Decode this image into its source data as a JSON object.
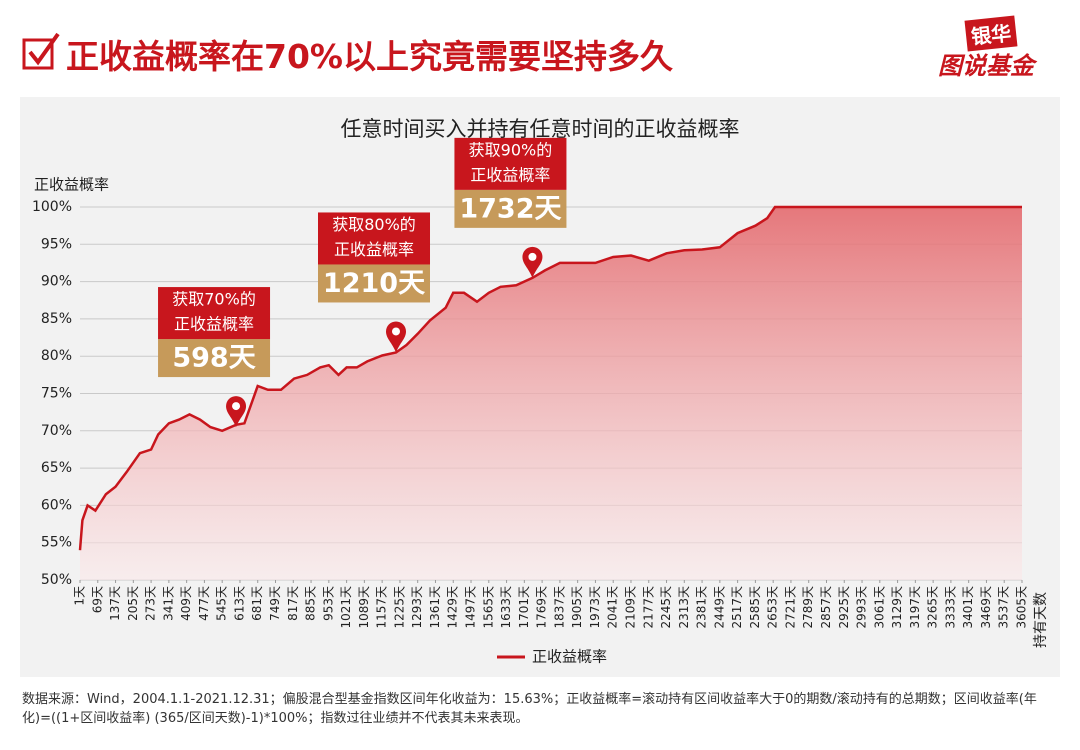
{
  "header": {
    "title": "正收益概率在70%以上究竟需要坚持多久",
    "logo_top": "银华",
    "logo_bottom": "图说基金"
  },
  "chart_data": {
    "type": "line",
    "title": "任意时间买入并持有任意时间的正收益概率",
    "y_label": "正收益概率",
    "x_label": "持有天数",
    "x": [
      1,
      10,
      30,
      60,
      100,
      137,
      180,
      230,
      273,
      300,
      341,
      380,
      420,
      460,
      500,
      545,
      598,
      630,
      681,
      720,
      770,
      820,
      870,
      920,
      953,
      990,
      1021,
      1060,
      1100,
      1157,
      1210,
      1250,
      1293,
      1340,
      1400,
      1429,
      1470,
      1520,
      1565,
      1610,
      1670,
      1732,
      1780,
      1837,
      1905,
      1973,
      2041,
      2109,
      2177,
      2245,
      2313,
      2381,
      2449,
      2517,
      2585,
      2630,
      2660,
      3605
    ],
    "series": [
      {
        "name": "正收益概率",
        "color": "#c8161d",
        "values": [
          54,
          58,
          60,
          59.3,
          61.5,
          62.5,
          64.5,
          67,
          67.5,
          69.5,
          71,
          71.5,
          72.2,
          71.5,
          70.5,
          70,
          70.8,
          71,
          76,
          75.5,
          75.5,
          77,
          77.5,
          78.5,
          78.8,
          77.5,
          78.5,
          78.5,
          79.3,
          80.1,
          80.5,
          81.5,
          83,
          84.8,
          86.5,
          88.5,
          88.5,
          87.3,
          88.5,
          89.3,
          89.5,
          90.5,
          91.5,
          92.5,
          92.5,
          92.5,
          93.3,
          93.5,
          92.8,
          93.8,
          94.2,
          94.3,
          94.6,
          96.5,
          97.5,
          98.5,
          100,
          100
        ]
      }
    ],
    "xlim": [
      1,
      3605
    ],
    "ylim": [
      50,
      100
    ],
    "yticks": [
      {
        "value": 50,
        "label": "50%"
      },
      {
        "value": 55,
        "label": "55%"
      },
      {
        "value": 60,
        "label": "60%"
      },
      {
        "value": 65,
        "label": "65%"
      },
      {
        "value": 70,
        "label": "70%"
      },
      {
        "value": 75,
        "label": "75%"
      },
      {
        "value": 80,
        "label": "80%"
      },
      {
        "value": 85,
        "label": "85%"
      },
      {
        "value": 90,
        "label": "90%"
      },
      {
        "value": 95,
        "label": "95%"
      },
      {
        "value": 100,
        "label": "100%"
      }
    ],
    "xticks": [
      {
        "value": 1,
        "label": "1天"
      },
      {
        "value": 69,
        "label": "69天"
      },
      {
        "value": 137,
        "label": "137天"
      },
      {
        "value": 205,
        "label": "205天"
      },
      {
        "value": 273,
        "label": "273天"
      },
      {
        "value": 341,
        "label": "341天"
      },
      {
        "value": 409,
        "label": "409天"
      },
      {
        "value": 477,
        "label": "477天"
      },
      {
        "value": 545,
        "label": "545天"
      },
      {
        "value": 613,
        "label": "613天"
      },
      {
        "value": 681,
        "label": "681天"
      },
      {
        "value": 749,
        "label": "749天"
      },
      {
        "value": 817,
        "label": "817天"
      },
      {
        "value": 885,
        "label": "885天"
      },
      {
        "value": 953,
        "label": "953天"
      },
      {
        "value": 1021,
        "label": "1021天"
      },
      {
        "value": 1089,
        "label": "1089天"
      },
      {
        "value": 1157,
        "label": "1157天"
      },
      {
        "value": 1225,
        "label": "1225天"
      },
      {
        "value": 1293,
        "label": "1293天"
      },
      {
        "value": 1361,
        "label": "1361天"
      },
      {
        "value": 1429,
        "label": "1429天"
      },
      {
        "value": 1497,
        "label": "1497天"
      },
      {
        "value": 1565,
        "label": "1565天"
      },
      {
        "value": 1633,
        "label": "1633天"
      },
      {
        "value": 1701,
        "label": "1701天"
      },
      {
        "value": 1769,
        "label": "1769天"
      },
      {
        "value": 1837,
        "label": "1837天"
      },
      {
        "value": 1905,
        "label": "1905天"
      },
      {
        "value": 1973,
        "label": "1973天"
      },
      {
        "value": 2041,
        "label": "2041天"
      },
      {
        "value": 2109,
        "label": "2109天"
      },
      {
        "value": 2177,
        "label": "2177天"
      },
      {
        "value": 2245,
        "label": "2245天"
      },
      {
        "value": 2313,
        "label": "2313天"
      },
      {
        "value": 2381,
        "label": "2381天"
      },
      {
        "value": 2449,
        "label": "2449天"
      },
      {
        "value": 2517,
        "label": "2517天"
      },
      {
        "value": 2585,
        "label": "2585天"
      },
      {
        "value": 2653,
        "label": "2653天"
      },
      {
        "value": 2721,
        "label": "2721天"
      },
      {
        "value": 2789,
        "label": "2789天"
      },
      {
        "value": 2857,
        "label": "2857天"
      },
      {
        "value": 2925,
        "label": "2925天"
      },
      {
        "value": 2993,
        "label": "2993天"
      },
      {
        "value": 3061,
        "label": "3061天"
      },
      {
        "value": 3129,
        "label": "3129天"
      },
      {
        "value": 3197,
        "label": "3197天"
      },
      {
        "value": 3265,
        "label": "3265天"
      },
      {
        "value": 3333,
        "label": "3333天"
      },
      {
        "value": 3401,
        "label": "3401天"
      },
      {
        "value": 3469,
        "label": "3469天"
      },
      {
        "value": 3537,
        "label": "3537天"
      },
      {
        "value": 3605,
        "label": "3605天"
      }
    ],
    "grid": true,
    "annotations": [
      {
        "x": 598,
        "y": 70.5,
        "lines": [
          "获取70%的",
          "正收益概率"
        ],
        "label": "598天"
      },
      {
        "x": 1210,
        "y": 80.5,
        "lines": [
          "获取80%的",
          "正收益概率"
        ],
        "label": "1210天"
      },
      {
        "x": 1732,
        "y": 90.5,
        "lines": [
          "获取90%的",
          "正收益概率"
        ],
        "label": "1732天"
      }
    ]
  },
  "footnote": "数据来源：Wind，2004.1.1-2021.12.31；偏股混合型基金指数区间年化收益为：15.63%；正收益概率=滚动持有区间收益率大于0的期数/滚动持有的总期数；区间收益率(年化)=((1+区间收益率) (365/区间天数)-1)*100%；指数过往业绩并不代表其未来表现。"
}
